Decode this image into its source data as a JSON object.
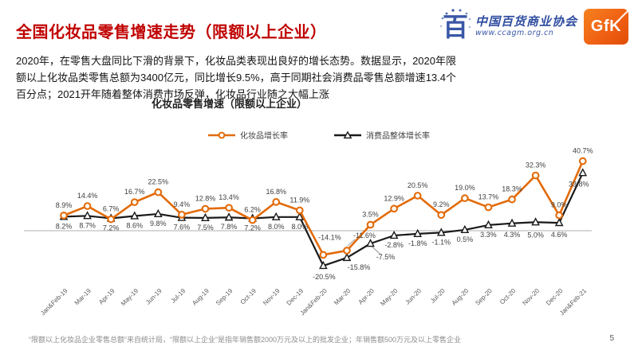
{
  "slide": {
    "title": "全国化妆品零售增速走势（限额以上企业）",
    "title_color": "#C00000",
    "body": "2020年，在零售大盘同比下滑的背景下，化妆品类表现出良好的增长态势。数据显示，2020年限额以上化妆品类零售总额为3400亿元，同比增长9.5%，高于同期社会消费品零售总额增速13.4个百分点；2021开年随着整体消费市场反弹，化妆品行业随之大幅上涨",
    "footnote": "“限额以上化妆品企业零售总额”来自统计局，“限额以上企业”是指年销售额2000万元及以上的批发企业；年销售额500万元及以上零售企业",
    "page_number": "5"
  },
  "logos": {
    "ccagm_name": "中国百货商业协会",
    "ccagm_url": "www.ccagm.org.cn",
    "ccagm_color": "#3A57A7",
    "ccagm_emblem_glyph": "百",
    "gfk_label": "GfK",
    "gfk_color": "#EF5E12"
  },
  "chart_data": {
    "type": "line",
    "title": "化妆品零售增速（限额以上企业）",
    "categories": [
      "Jan&Feb-19",
      "Mar-19",
      "Apr-19",
      "May-19",
      "Jun-19",
      "Jul-19",
      "Aug-19",
      "Sep-19",
      "Oct-19",
      "Nov-19",
      "Dec-19",
      "Jan&Feb-20",
      "Mar-20",
      "Apr-20",
      "May-20",
      "Jun-20",
      "Jul-20",
      "Aug-20",
      "Sep-20",
      "Oct-20",
      "Nov-20",
      "Dec-20",
      "Jan&Feb-21"
    ],
    "series": [
      {
        "name": "化妆品增长率",
        "color": "#E26B0A",
        "marker": "circle",
        "values": [
          8.9,
          14.4,
          6.7,
          16.7,
          22.5,
          9.4,
          12.8,
          13.4,
          6.2,
          16.8,
          11.9,
          -14.1,
          -11.6,
          3.5,
          12.9,
          20.5,
          9.2,
          19.0,
          13.7,
          18.3,
          32.3,
          9.0,
          40.7
        ]
      },
      {
        "name": "消费品整体增长率",
        "color": "#1A1A1A",
        "marker": "triangle",
        "values": [
          8.2,
          8.7,
          7.2,
          8.6,
          9.8,
          7.6,
          7.5,
          7.8,
          7.2,
          8.0,
          8.0,
          -20.5,
          -15.8,
          -7.5,
          -2.8,
          -1.8,
          -1.1,
          0.5,
          3.3,
          4.3,
          5.0,
          4.6,
          33.8
        ]
      }
    ],
    "ylim": [
      -25,
      45
    ],
    "grid": false,
    "zero_line_color": "#BFBFBF",
    "data_label_format": "0.0%",
    "legend_position": "top"
  }
}
